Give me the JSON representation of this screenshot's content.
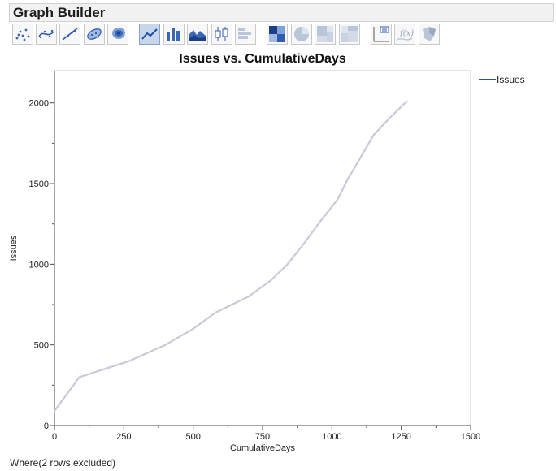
{
  "header": {
    "title": "Graph Builder"
  },
  "toolbar": {
    "buttons": [
      {
        "name": "points-icon"
      },
      {
        "name": "smoother-icon"
      },
      {
        "name": "line-of-fit-icon"
      },
      {
        "name": "ellipse-icon"
      },
      {
        "name": "contour-icon"
      },
      {
        "name": "line-icon",
        "active": true
      },
      {
        "name": "bar-icon"
      },
      {
        "name": "area-icon"
      },
      {
        "name": "box-plot-icon"
      },
      {
        "name": "histogram-icon"
      },
      {
        "name": "heatmap-icon"
      },
      {
        "name": "pie-icon"
      },
      {
        "name": "treemap-icon"
      },
      {
        "name": "mosaic-icon"
      },
      {
        "name": "caption-box-icon"
      },
      {
        "name": "formula-icon"
      },
      {
        "name": "map-shapes-icon"
      }
    ]
  },
  "chart_data": {
    "type": "line",
    "title": "Issues vs. CumulativeDays",
    "xlabel": "CumulativeDays",
    "ylabel": "Issues",
    "xlim": [
      0,
      1500
    ],
    "ylim": [
      0,
      2200
    ],
    "xticks": [
      0,
      250,
      500,
      750,
      1000,
      1250,
      1500
    ],
    "yticks": [
      0,
      500,
      1000,
      1500,
      2000
    ],
    "grid": false,
    "legend_position": "right",
    "series": [
      {
        "name": "Issues",
        "color": "#c9c9d9",
        "x": [
          0,
          90,
          180,
          270,
          400,
          500,
          580,
          700,
          780,
          840,
          900,
          960,
          1020,
          1055,
          1150,
          1210,
          1270
        ],
        "y": [
          90,
          300,
          350,
          400,
          500,
          600,
          700,
          800,
          900,
          1000,
          1130,
          1270,
          1400,
          1520,
          1800,
          1910,
          2010
        ]
      }
    ],
    "legend_line_color": "#2e4f8f"
  },
  "footer": {
    "note": "Where(2 rows excluded)"
  }
}
